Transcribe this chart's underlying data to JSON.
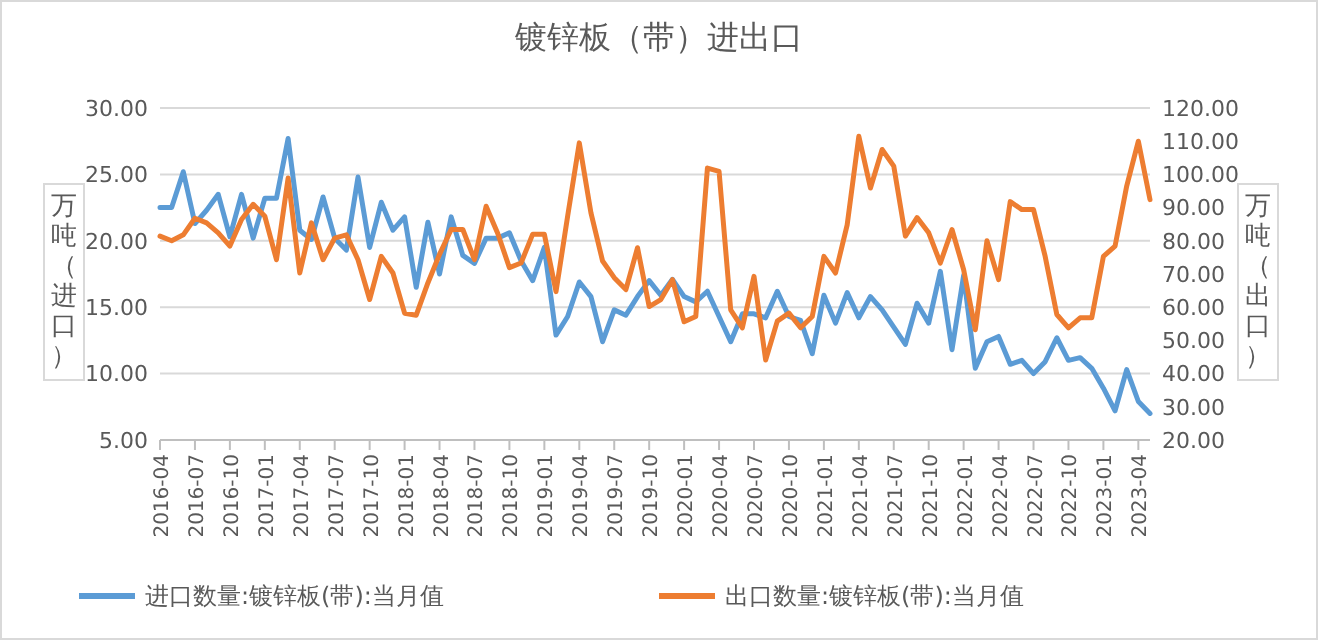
{
  "chart_data": {
    "type": "line",
    "title": "镀锌板（带）进出口",
    "ylabel": "万吨（进口）",
    "y2label": "万吨（出口）",
    "categories": [
      "2016-04",
      null,
      null,
      "2016-07",
      null,
      null,
      "2016-10",
      null,
      null,
      "2017-01",
      null,
      null,
      "2017-04",
      null,
      null,
      "2017-07",
      null,
      null,
      "2017-10",
      null,
      null,
      "2018-01",
      null,
      null,
      "2018-04",
      null,
      null,
      "2018-07",
      null,
      null,
      "2018-10",
      null,
      null,
      "2019-01",
      null,
      null,
      "2019-04",
      null,
      null,
      "2019-07",
      null,
      null,
      "2019-10",
      null,
      null,
      "2020-01",
      null,
      null,
      "2020-04",
      null,
      null,
      "2020-07",
      null,
      null,
      "2020-10",
      null,
      null,
      "2021-01",
      null,
      null,
      "2021-04",
      null,
      null,
      "2021-07",
      null,
      null,
      "2021-10",
      null,
      null,
      "2022-01",
      null,
      null,
      "2022-04",
      null,
      null,
      "2022-07",
      null,
      null,
      "2022-10",
      null,
      null,
      "2023-01",
      null,
      null,
      "2023-04",
      null
    ],
    "series": [
      {
        "name": "进口数量:镀锌板(带):当月值",
        "color": "#5b9bd5",
        "values": [
          22.5,
          22.5,
          25.2,
          21.3,
          22.3,
          23.5,
          20.3,
          23.5,
          20.2,
          23.2,
          23.2,
          27.7,
          20.8,
          20.1,
          23.3,
          20.2,
          19.3,
          24.8,
          19.5,
          22.9,
          20.8,
          21.8,
          16.5,
          21.4,
          17.5,
          21.8,
          18.9,
          18.3,
          20.2,
          20.2,
          20.6,
          18.5,
          17.0,
          19.5,
          12.9,
          14.3,
          16.9,
          15.8,
          12.4,
          14.8,
          14.4,
          15.8,
          17.0,
          15.9,
          17.1,
          15.8,
          15.4,
          16.2,
          14.3,
          12.4,
          14.5,
          14.5,
          14.2,
          16.2,
          14.3,
          14.0,
          11.5,
          15.9,
          13.8,
          16.1,
          14.2,
          15.8,
          14.8,
          13.5,
          12.2,
          15.3,
          13.8,
          17.7,
          11.8,
          17.4,
          10.4,
          12.4,
          12.8,
          10.7,
          11.0,
          10.0,
          10.9,
          12.7,
          11.0,
          11.2,
          10.4,
          8.9,
          7.2,
          10.3,
          7.9,
          7.0
        ]
      },
      {
        "name": "出口数量:镀锌板(带):当月值",
        "color": "#ed7d31",
        "axis": "y2",
        "values": [
          81.4,
          80.0,
          81.8,
          86.8,
          85.4,
          82.4,
          78.4,
          86.4,
          91.0,
          87.4,
          74.3,
          98.9,
          70.3,
          85.4,
          74.3,
          80.8,
          81.8,
          74.3,
          62.3,
          75.3,
          70.3,
          58.2,
          57.6,
          67.3,
          75.9,
          83.4,
          83.4,
          74.3,
          90.4,
          82.2,
          71.9,
          73.3,
          82.0,
          82.0,
          64.7,
          87.4,
          109.5,
          88.4,
          73.9,
          68.9,
          65.3,
          77.9,
          60.2,
          62.3,
          68.3,
          55.6,
          57.2,
          101.9,
          100.9,
          59.2,
          53.8,
          69.3,
          44.1,
          55.8,
          58.2,
          53.8,
          57.2,
          75.3,
          70.3,
          84.8,
          111.5,
          95.9,
          107.5,
          102.5,
          81.4,
          87.0,
          82.4,
          73.3,
          83.4,
          71.3,
          53.2,
          80.0,
          68.3,
          91.8,
          89.4,
          89.4,
          75.3,
          57.8,
          53.8,
          56.8,
          56.8,
          75.3,
          78.4,
          96.5,
          110.0,
          92.4
        ]
      }
    ],
    "ylim": [
      5,
      30
    ],
    "yticks": [
      {
        "value": 5,
        "label": "5.00"
      },
      {
        "value": 10,
        "label": "10.00"
      },
      {
        "value": 15,
        "label": "15.00"
      },
      {
        "value": 20,
        "label": "20.00"
      },
      {
        "value": 25,
        "label": "25.00"
      },
      {
        "value": 30,
        "label": "30.00"
      }
    ],
    "y2lim": [
      20,
      120
    ],
    "y2ticks": [
      {
        "value": 20,
        "label": "20.00"
      },
      {
        "value": 30,
        "label": "30.00"
      },
      {
        "value": 40,
        "label": "40.00"
      },
      {
        "value": 50,
        "label": "50.00"
      },
      {
        "value": 60,
        "label": "60.00"
      },
      {
        "value": 70,
        "label": "70.00"
      },
      {
        "value": 80,
        "label": "80.00"
      },
      {
        "value": 90,
        "label": "90.00"
      },
      {
        "value": 100,
        "label": "100.00"
      },
      {
        "value": 110,
        "label": "110.00"
      },
      {
        "value": 120,
        "label": "120.00"
      }
    ],
    "grid": "y",
    "legend": "bottom",
    "marker": "none",
    "line_style": "solid"
  }
}
